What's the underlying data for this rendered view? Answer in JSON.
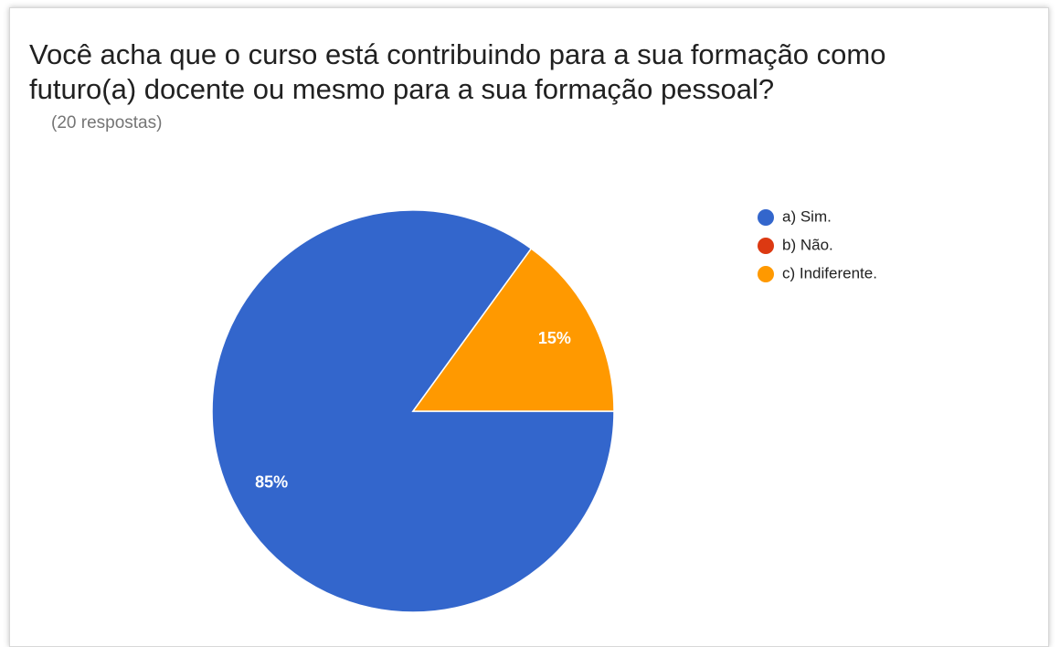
{
  "chart_data": {
    "type": "pie",
    "title": "Você acha que o curso está contribuindo para a sua formação como futuro(a) docente ou mesmo para a sua formação pessoal?",
    "subtitle": "(20 respostas)",
    "categories": [
      "a) Sim.",
      "b) Não.",
      "c) Indiferente."
    ],
    "values": [
      85,
      0,
      15
    ],
    "value_labels": [
      "85%",
      null,
      "15%"
    ],
    "colors": [
      "#3366cc",
      "#dc3912",
      "#ff9900"
    ],
    "legend": "right"
  }
}
